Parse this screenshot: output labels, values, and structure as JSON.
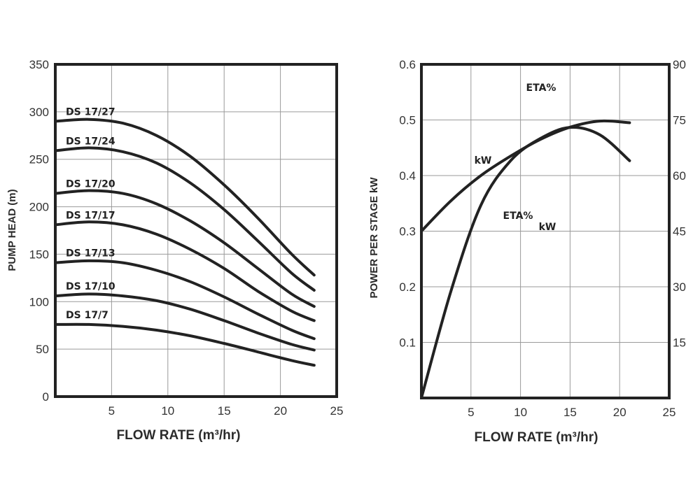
{
  "chart_data": [
    {
      "type": "line",
      "title": "",
      "xlabel": "FLOW RATE (m³/hr)",
      "ylabel": "PUMP HEAD (m)",
      "xlim": [
        0,
        25
      ],
      "ylim": [
        0,
        350
      ],
      "xticks": [
        "5",
        "10",
        "15",
        "20",
        "25"
      ],
      "yticks": [
        "0",
        "50",
        "100",
        "150",
        "200",
        "250",
        "300",
        "350"
      ],
      "grid": true,
      "series": [
        {
          "name": "DS 17/27",
          "x": [
            0,
            3,
            6,
            9,
            12,
            15,
            18,
            21,
            23
          ],
          "y": [
            290,
            292,
            288,
            275,
            253,
            223,
            188,
            150,
            128
          ]
        },
        {
          "name": "DS 17/24",
          "x": [
            0,
            3,
            6,
            9,
            12,
            15,
            18,
            21,
            23
          ],
          "y": [
            259,
            262,
            258,
            246,
            225,
            197,
            164,
            130,
            112
          ]
        },
        {
          "name": "DS 17/20",
          "x": [
            0,
            3,
            6,
            9,
            12,
            15,
            18,
            21,
            23
          ],
          "y": [
            214,
            217,
            214,
            203,
            185,
            162,
            135,
            108,
            95
          ]
        },
        {
          "name": "DS 17/17",
          "x": [
            0,
            3,
            6,
            9,
            12,
            15,
            18,
            21,
            23
          ],
          "y": [
            181,
            184,
            181,
            171,
            155,
            135,
            111,
            90,
            80
          ]
        },
        {
          "name": "DS 17/13",
          "x": [
            0,
            3,
            6,
            9,
            12,
            15,
            18,
            21,
            23
          ],
          "y": [
            141,
            143,
            141,
            133,
            121,
            105,
            87,
            70,
            61
          ]
        },
        {
          "name": "DS 17/10",
          "x": [
            0,
            3,
            6,
            9,
            12,
            15,
            18,
            21,
            23
          ],
          "y": [
            106,
            108,
            106,
            101,
            92,
            80,
            67,
            55,
            49
          ]
        },
        {
          "name": "DS 17/7",
          "x": [
            0,
            3,
            6,
            9,
            12,
            15,
            18,
            21,
            23
          ],
          "y": [
            76,
            76,
            74,
            70,
            64,
            56,
            47,
            38,
            33
          ]
        }
      ]
    },
    {
      "type": "line",
      "title": "",
      "xlabel": "FLOW RATE (m³/hr)",
      "ylabel": "POWER PER STAGE kW",
      "xlim": [
        0,
        25
      ],
      "ylim": [
        0,
        0.6
      ],
      "y2lim": [
        0,
        90
      ],
      "xticks": [
        "5",
        "10",
        "15",
        "20",
        "25"
      ],
      "yticks": [
        "0.1",
        "0.2",
        "0.3",
        "0.4",
        "0.5",
        "0.6"
      ],
      "y2ticks": [
        "15",
        "30",
        "45",
        "60",
        "75",
        "90"
      ],
      "grid": true,
      "annotations": [
        "ETA%",
        "kW",
        "ETA%",
        "kW"
      ],
      "series": [
        {
          "name": "kW",
          "axis": "left",
          "x": [
            0,
            3,
            6,
            9,
            12,
            15,
            18,
            21
          ],
          "y": [
            0.3,
            0.355,
            0.4,
            0.435,
            0.465,
            0.487,
            0.498,
            0.495
          ]
        },
        {
          "name": "ETA%",
          "axis": "right",
          "x": [
            0,
            3,
            6,
            9,
            12,
            15,
            18,
            21
          ],
          "y": [
            0,
            29,
            52,
            64,
            70,
            73,
            71,
            64
          ]
        }
      ]
    }
  ]
}
